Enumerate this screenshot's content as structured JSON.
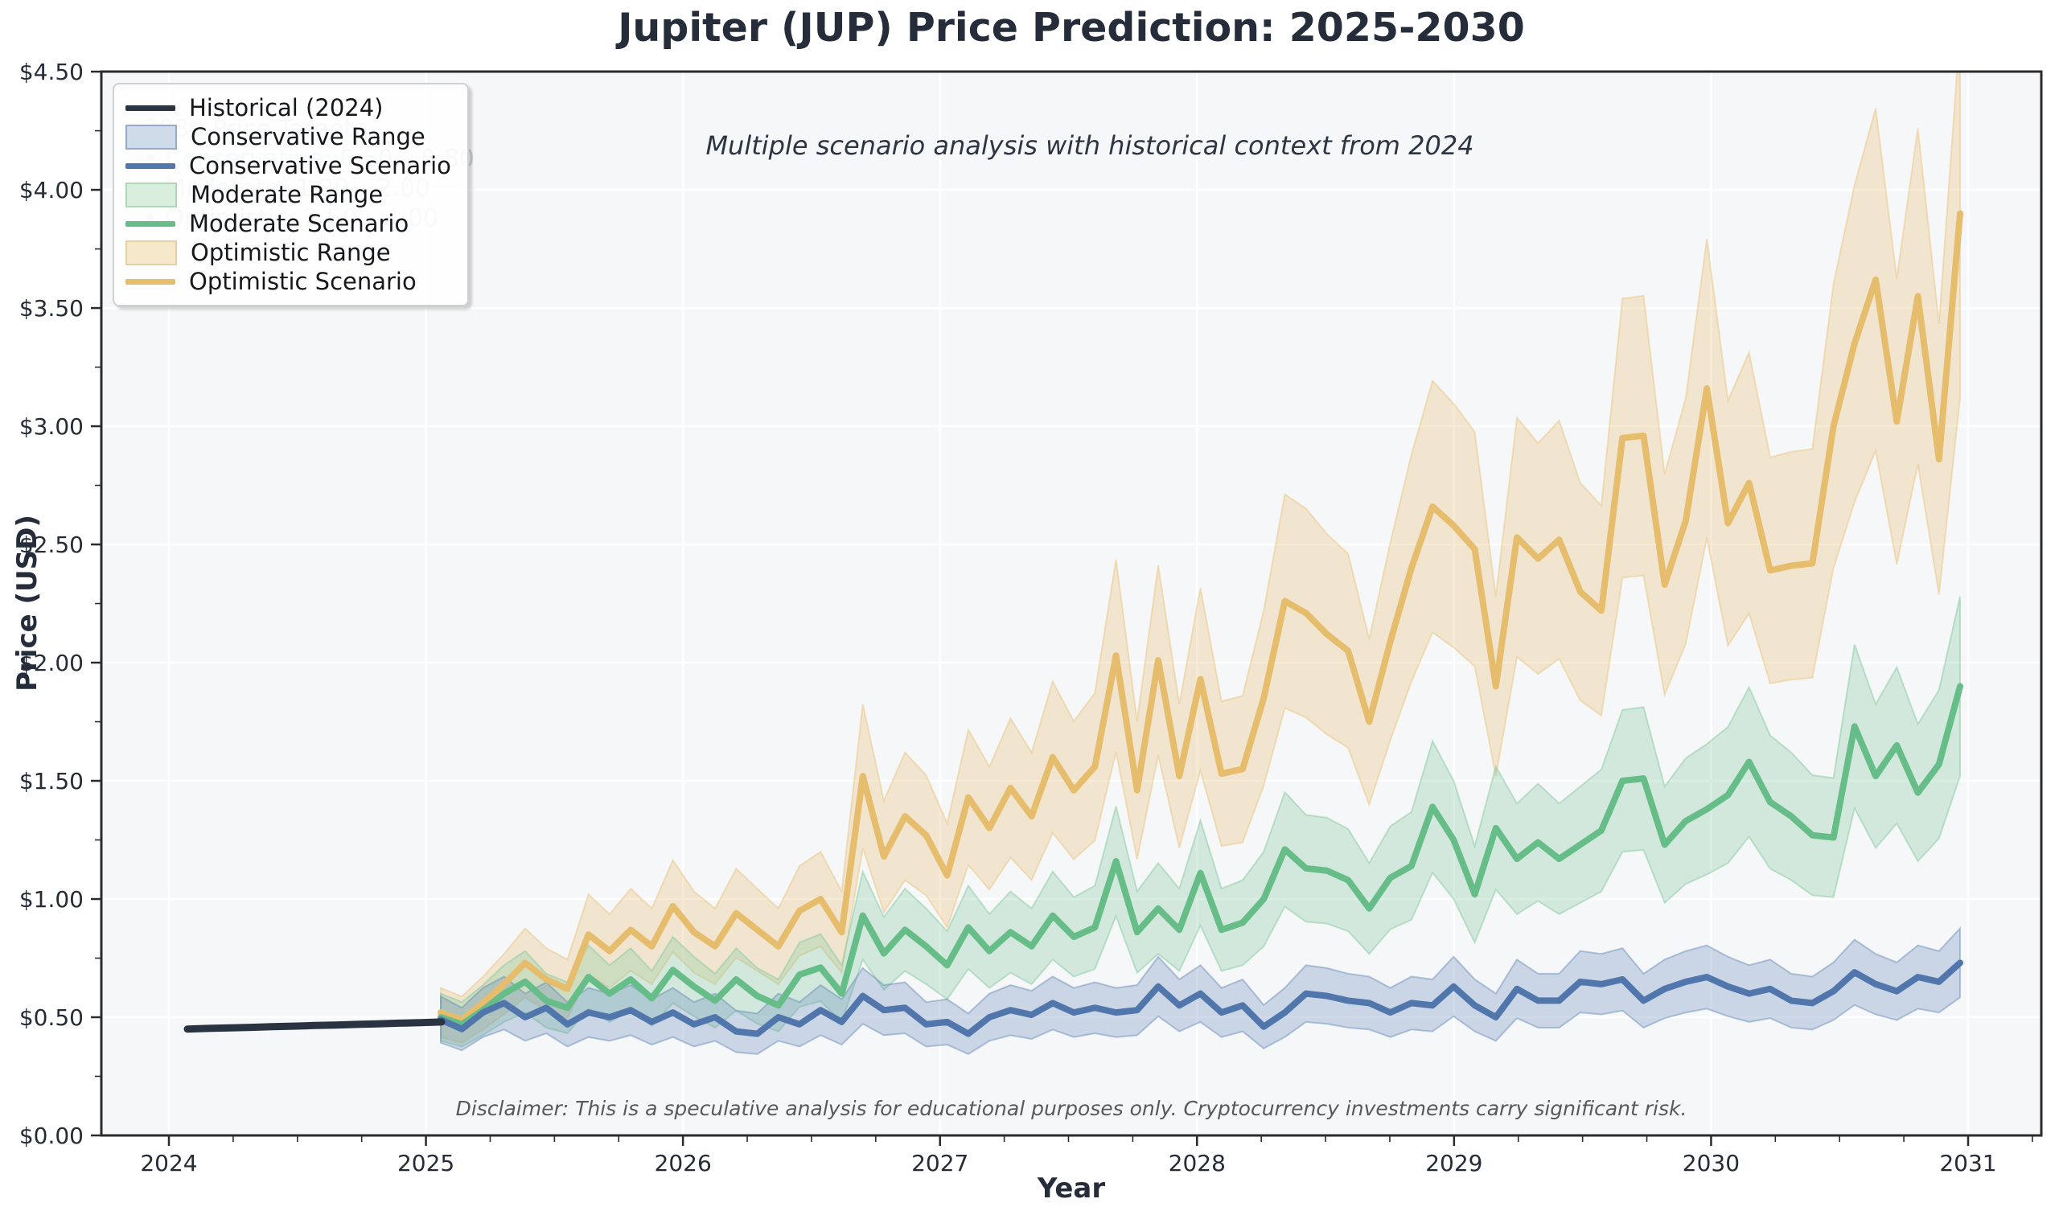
{
  "title": {
    "text": "Jupiter (JUP) Price Prediction: 2025-2030",
    "color": "#252c3a"
  },
  "subtitle": {
    "text": "Multiple scenario analysis with historical context from 2024",
    "color": "#2d3442"
  },
  "axis": {
    "x_label": "Year",
    "y_label": "Price (USD)",
    "x_ticks": {
      "labels": [
        "2024",
        "2025",
        "2026",
        "2027",
        "2028",
        "2029",
        "2030",
        "2031"
      ],
      "years": [
        2024,
        2025,
        2026,
        2027,
        2028,
        2029,
        2030,
        2031
      ]
    },
    "y_ticks": {
      "labels": [
        "$0.00",
        "$0.50",
        "$1.00",
        "$1.50",
        "$2.00",
        "$2.50",
        "$3.00",
        "$3.50",
        "$4.00",
        "$4.50"
      ],
      "values": [
        0,
        0.5,
        1,
        1.5,
        2,
        2.5,
        3,
        3.5,
        4,
        4.5
      ]
    }
  },
  "legend": {
    "items": [
      {
        "label": "Historical (2024)",
        "type": "line",
        "color": "#2a3341"
      },
      {
        "label": "Conservative Range",
        "type": "patch",
        "fill": "#cfdbe9",
        "border": "#93abc9"
      },
      {
        "label": "Conservative Scenario",
        "type": "line",
        "color": "#5076ab"
      },
      {
        "label": "Moderate Range",
        "type": "patch",
        "fill": "#daeede",
        "border": "#abd9b8"
      },
      {
        "label": "Moderate Scenario",
        "type": "line",
        "color": "#67bd88"
      },
      {
        "label": "Optimistic Range",
        "type": "patch",
        "fill": "#f6e8cb",
        "border": "#e6d0a2"
      },
      {
        "label": "Optimistic Scenario",
        "type": "line",
        "color": "#e6bd6d"
      }
    ]
  },
  "annotation": {
    "title": "2030 Price Targets",
    "lines": [
      "• Conservative: 0.50 – 0.80",
      "• Moderate: 1.20 – 2.00",
      "• Optimistic: 2.50 – 4.00"
    ]
  },
  "disclaimer": "Disclaimer: This is a speculative analysis for educational purposes only. Cryptocurrency investments carry significant risk.",
  "chart_data": {
    "type": "line",
    "title": "Jupiter (JUP) Price Prediction: 2025-2030",
    "xlabel": "Year",
    "ylabel": "Price (USD)",
    "ylim": [
      0,
      4.5
    ],
    "xlim_years": [
      2023.74,
      2031.28
    ],
    "grid": true,
    "legend_position": "upper left",
    "plot_background": "#f6f7f8",
    "historical": {
      "name": "Historical (2024)",
      "color": "#2a3341",
      "months": [
        "2024-01",
        "2024-02",
        "2024-03",
        "2024-04",
        "2024-05",
        "2024-06",
        "2024-07",
        "2024-08",
        "2024-09",
        "2024-10",
        "2024-11",
        "2024-12",
        "2025-01"
      ],
      "values": [
        0.45,
        0.453,
        0.455,
        0.457,
        0.46,
        0.462,
        0.465,
        0.467,
        0.47,
        0.472,
        0.475,
        0.477,
        0.48
      ]
    },
    "forecast_months": [
      "2025-01",
      "2025-02",
      "2025-03",
      "2025-04",
      "2025-05",
      "2025-06",
      "2025-07",
      "2025-08",
      "2025-09",
      "2025-10",
      "2025-11",
      "2025-12",
      "2026-01",
      "2026-02",
      "2026-03",
      "2026-04",
      "2026-05",
      "2026-06",
      "2026-07",
      "2026-08",
      "2026-09",
      "2026-10",
      "2026-11",
      "2026-12",
      "2027-01",
      "2027-02",
      "2027-03",
      "2027-04",
      "2027-05",
      "2027-06",
      "2027-07",
      "2027-08",
      "2027-09",
      "2027-10",
      "2027-11",
      "2027-12",
      "2028-01",
      "2028-02",
      "2028-03",
      "2028-04",
      "2028-05",
      "2028-06",
      "2028-07",
      "2028-08",
      "2028-09",
      "2028-10",
      "2028-11",
      "2028-12",
      "2029-01",
      "2029-02",
      "2029-03",
      "2029-04",
      "2029-05",
      "2029-06",
      "2029-07",
      "2029-08",
      "2029-09",
      "2029-10",
      "2029-11",
      "2029-12",
      "2030-01",
      "2030-02",
      "2030-03",
      "2030-04",
      "2030-05",
      "2030-06",
      "2030-07",
      "2030-08",
      "2030-09",
      "2030-10",
      "2030-11",
      "2030-12",
      "2031-01"
    ],
    "series": [
      {
        "name": "Conservative Scenario",
        "color": "#5076ab",
        "band_name": "Conservative Range",
        "band_color": "#6288b8",
        "band_opacity": 0.3,
        "band_low_factor": 0.8,
        "band_high_factor": 1.2,
        "values": [
          0.49,
          0.45,
          0.52,
          0.56,
          0.5,
          0.54,
          0.47,
          0.52,
          0.5,
          0.53,
          0.48,
          0.52,
          0.47,
          0.5,
          0.44,
          0.43,
          0.5,
          0.47,
          0.53,
          0.48,
          0.59,
          0.53,
          0.54,
          0.47,
          0.48,
          0.43,
          0.5,
          0.53,
          0.51,
          0.56,
          0.52,
          0.54,
          0.52,
          0.53,
          0.63,
          0.55,
          0.6,
          0.52,
          0.55,
          0.46,
          0.52,
          0.6,
          0.59,
          0.57,
          0.56,
          0.52,
          0.56,
          0.55,
          0.63,
          0.55,
          0.5,
          0.62,
          0.57,
          0.57,
          0.65,
          0.64,
          0.66,
          0.57,
          0.62,
          0.65,
          0.67,
          0.63,
          0.6,
          0.62,
          0.57,
          0.56,
          0.61,
          0.69,
          0.64,
          0.61,
          0.67,
          0.65,
          0.73
        ]
      },
      {
        "name": "Moderate Scenario",
        "color": "#67bd88",
        "band_name": "Moderate Range",
        "band_color": "#7ec89a",
        "band_opacity": 0.3,
        "band_low_factor": 0.8,
        "band_high_factor": 1.2,
        "values": [
          0.5,
          0.47,
          0.53,
          0.6,
          0.65,
          0.57,
          0.54,
          0.67,
          0.6,
          0.66,
          0.58,
          0.7,
          0.63,
          0.57,
          0.66,
          0.59,
          0.55,
          0.68,
          0.71,
          0.6,
          0.93,
          0.77,
          0.87,
          0.8,
          0.72,
          0.88,
          0.78,
          0.86,
          0.8,
          0.93,
          0.84,
          0.88,
          1.16,
          0.86,
          0.96,
          0.87,
          1.11,
          0.87,
          0.9,
          1.0,
          1.21,
          1.13,
          1.12,
          1.08,
          0.96,
          1.09,
          1.14,
          1.39,
          1.25,
          1.02,
          1.3,
          1.17,
          1.24,
          1.17,
          1.23,
          1.29,
          1.5,
          1.51,
          1.23,
          1.33,
          1.38,
          1.44,
          1.58,
          1.41,
          1.35,
          1.27,
          1.26,
          1.73,
          1.52,
          1.65,
          1.45,
          1.57,
          1.9
        ]
      },
      {
        "name": "Optimistic Scenario",
        "color": "#e6bd6d",
        "band_name": "Optimistic Range",
        "band_color": "#e8c27b",
        "band_opacity": 0.33,
        "band_low_factor": 0.8,
        "band_high_factor": 1.2,
        "values": [
          0.52,
          0.49,
          0.56,
          0.64,
          0.73,
          0.66,
          0.62,
          0.85,
          0.78,
          0.87,
          0.8,
          0.97,
          0.86,
          0.8,
          0.94,
          0.87,
          0.8,
          0.95,
          1.0,
          0.86,
          1.52,
          1.18,
          1.35,
          1.27,
          1.1,
          1.43,
          1.3,
          1.47,
          1.35,
          1.6,
          1.46,
          1.56,
          2.03,
          1.46,
          2.01,
          1.52,
          1.93,
          1.53,
          1.55,
          1.85,
          2.26,
          2.21,
          2.12,
          2.05,
          1.75,
          2.09,
          2.4,
          2.66,
          2.58,
          2.48,
          1.9,
          2.53,
          2.44,
          2.52,
          2.3,
          2.22,
          2.95,
          2.96,
          2.33,
          2.6,
          3.16,
          2.59,
          2.76,
          2.39,
          2.41,
          2.42,
          3.0,
          3.35,
          3.62,
          3.02,
          3.55,
          2.86,
          3.9
        ]
      }
    ]
  }
}
